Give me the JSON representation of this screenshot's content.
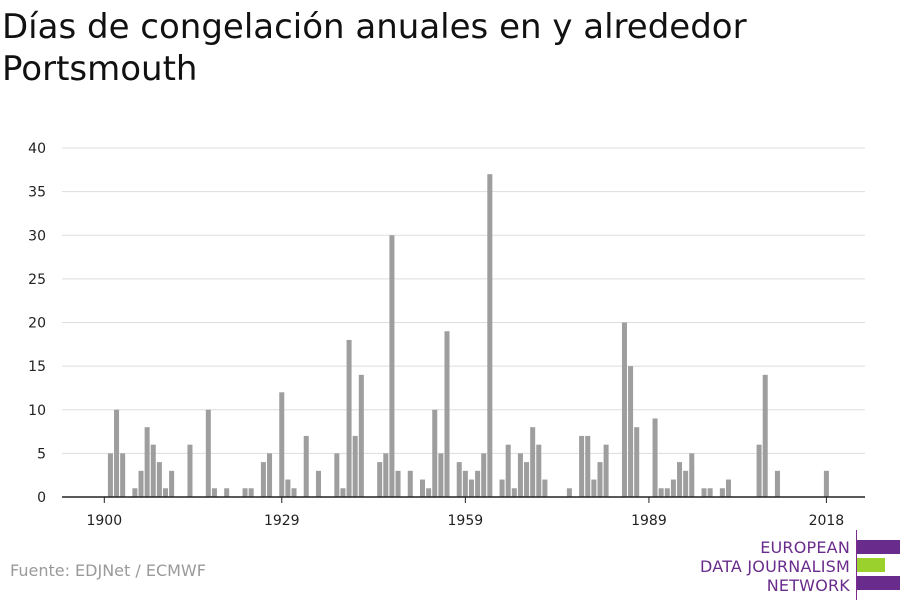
{
  "title": "Días de congelación anuales en y alrededor Portsmouth",
  "source": "Fuente: EDJNet / ECMWF",
  "logo": {
    "lines": [
      "EUROPEAN",
      "DATA JOURNALISM",
      "NETWORK"
    ],
    "colors": {
      "purple": "#6a2c8c",
      "green": "#9bd12c"
    }
  },
  "colors": {
    "bar": "#9e9e9e",
    "grid": "#dddddd",
    "axis": "#222222"
  },
  "chart_data": {
    "type": "bar",
    "title": "Días de congelación anuales en y alrededor Portsmouth",
    "xlabel": "",
    "ylabel": "",
    "ylim": [
      0,
      40
    ],
    "yticks": [
      0,
      5,
      10,
      15,
      20,
      25,
      30,
      35,
      40
    ],
    "xlim": [
      1894,
      2021
    ],
    "xticks": [
      1900,
      1929,
      1959,
      1989,
      2018
    ],
    "grid": true,
    "x": [
      1900,
      1901,
      1902,
      1903,
      1904,
      1905,
      1906,
      1907,
      1908,
      1909,
      1910,
      1911,
      1912,
      1913,
      1914,
      1915,
      1916,
      1917,
      1918,
      1919,
      1920,
      1921,
      1922,
      1923,
      1924,
      1925,
      1926,
      1927,
      1928,
      1929,
      1930,
      1931,
      1932,
      1933,
      1934,
      1935,
      1936,
      1937,
      1938,
      1939,
      1940,
      1941,
      1942,
      1943,
      1944,
      1945,
      1946,
      1947,
      1948,
      1949,
      1950,
      1951,
      1952,
      1953,
      1954,
      1955,
      1956,
      1957,
      1958,
      1959,
      1960,
      1961,
      1962,
      1963,
      1964,
      1965,
      1966,
      1967,
      1968,
      1969,
      1970,
      1971,
      1972,
      1973,
      1974,
      1975,
      1976,
      1977,
      1978,
      1979,
      1980,
      1981,
      1982,
      1983,
      1984,
      1985,
      1986,
      1987,
      1988,
      1989,
      1990,
      1991,
      1992,
      1993,
      1994,
      1995,
      1996,
      1997,
      1998,
      1999,
      2000,
      2001,
      2002,
      2003,
      2004,
      2005,
      2006,
      2007,
      2008,
      2009,
      2010,
      2011,
      2012,
      2013,
      2014,
      2015,
      2016,
      2017,
      2018
    ],
    "values": [
      0,
      5,
      10,
      5,
      0,
      1,
      3,
      8,
      6,
      4,
      1,
      3,
      0,
      0,
      6,
      0,
      0,
      10,
      1,
      0,
      1,
      0,
      0,
      1,
      1,
      0,
      4,
      5,
      0,
      12,
      2,
      1,
      0,
      7,
      0,
      3,
      0,
      0,
      5,
      1,
      18,
      7,
      14,
      0,
      0,
      4,
      5,
      30,
      3,
      0,
      3,
      0,
      2,
      1,
      10,
      5,
      19,
      0,
      4,
      3,
      2,
      3,
      5,
      37,
      0,
      2,
      6,
      1,
      5,
      4,
      8,
      6,
      2,
      0,
      0,
      0,
      1,
      0,
      7,
      7,
      2,
      4,
      6,
      0,
      0,
      20,
      15,
      8,
      0,
      0,
      9,
      1,
      1,
      2,
      4,
      3,
      5,
      0,
      1,
      1,
      0,
      1,
      2,
      0,
      0,
      0,
      0,
      6,
      14,
      0,
      3,
      0,
      0,
      0,
      0,
      0,
      0,
      0,
      3
    ]
  }
}
